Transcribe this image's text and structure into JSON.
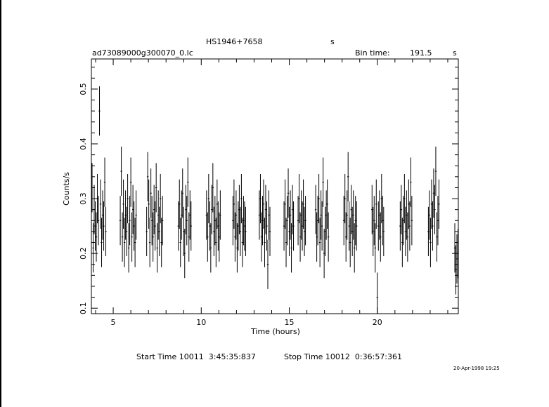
{
  "header": {
    "object_name": "HS1946+7658",
    "object_suffix": "s",
    "file_name": "ad73089000g300070_0.lc",
    "bin_time_label": "Bin time:",
    "bin_time_value": "191.5",
    "bin_time_unit": "s"
  },
  "footer": {
    "start_label": "Start Time 10011  3:45:35:837",
    "stop_label": "Stop Time 10012  0:36:57:361",
    "timestamp": "20-Apr-1998 19:25"
  },
  "chart_data": {
    "type": "scatter",
    "title": "HS1946+7658",
    "xlabel": "Time (hours)",
    "ylabel": "Counts/s",
    "xlim": [
      3.76,
      24.6
    ],
    "ylim": [
      0.09,
      0.555
    ],
    "xticks": [
      5,
      10,
      15,
      20
    ],
    "yticks": [
      0.1,
      0.2,
      0.3,
      0.4,
      0.5
    ],
    "ytick_labels": [
      "0.1",
      "0.2",
      "0.3",
      "0.4",
      "0.5"
    ],
    "grid": false,
    "legend": "none",
    "series": [
      {
        "style": "points with vertical error bars",
        "x": [
          3.8,
          3.86,
          3.92,
          3.98,
          4.04,
          4.1,
          4.16,
          4.22,
          4.28,
          4.34,
          4.4,
          4.46,
          4.52,
          4.58,
          5.4,
          5.46,
          5.52,
          5.58,
          5.64,
          5.7,
          5.76,
          5.82,
          5.88,
          5.94,
          6.0,
          6.06,
          6.12,
          6.18,
          6.24,
          6.3,
          6.9,
          6.96,
          7.02,
          7.08,
          7.14,
          7.2,
          7.26,
          7.32,
          7.38,
          7.44,
          7.5,
          7.56,
          7.62,
          7.68,
          7.74,
          7.8,
          8.7,
          8.76,
          8.82,
          8.88,
          8.94,
          9.0,
          9.06,
          9.12,
          9.18,
          9.24,
          9.3,
          9.36,
          9.42,
          10.3,
          10.36,
          10.42,
          10.48,
          10.54,
          10.6,
          10.66,
          10.72,
          10.78,
          10.84,
          10.9,
          10.96,
          11.02,
          11.08,
          11.8,
          11.86,
          11.92,
          11.98,
          12.04,
          12.1,
          12.16,
          12.22,
          12.28,
          12.34,
          12.4,
          12.46,
          12.52,
          13.3,
          13.36,
          13.42,
          13.48,
          13.54,
          13.6,
          13.66,
          13.72,
          13.78,
          13.84,
          13.9,
          14.7,
          14.76,
          14.82,
          14.88,
          14.94,
          15.0,
          15.06,
          15.12,
          15.18,
          15.24,
          15.5,
          15.56,
          15.62,
          15.68,
          15.74,
          15.8,
          15.86,
          15.92,
          16.5,
          16.56,
          16.62,
          16.68,
          16.74,
          16.8,
          16.86,
          16.92,
          16.98,
          17.04,
          17.1,
          17.16,
          17.22,
          18.1,
          18.16,
          18.22,
          18.28,
          18.34,
          18.4,
          18.46,
          18.52,
          18.58,
          18.64,
          18.7,
          18.76,
          18.82,
          19.7,
          19.76,
          19.82,
          19.88,
          19.94,
          20.0,
          20.06,
          20.12,
          20.18,
          20.24,
          20.3,
          20.36,
          21.3,
          21.36,
          21.42,
          21.48,
          21.54,
          21.6,
          21.66,
          21.72,
          21.78,
          21.84,
          21.9,
          21.96,
          22.9,
          22.96,
          23.02,
          23.08,
          23.14,
          23.2,
          23.26,
          23.32,
          23.38,
          23.44,
          23.5,
          24.4,
          24.46,
          24.52,
          24.58
        ],
        "y": [
          0.32,
          0.21,
          0.28,
          0.25,
          0.23,
          0.3,
          0.26,
          0.46,
          0.29,
          0.22,
          0.27,
          0.25,
          0.33,
          0.24,
          0.26,
          0.35,
          0.23,
          0.29,
          0.22,
          0.27,
          0.24,
          0.3,
          0.21,
          0.26,
          0.33,
          0.23,
          0.28,
          0.25,
          0.22,
          0.27,
          0.24,
          0.34,
          0.29,
          0.22,
          0.31,
          0.26,
          0.23,
          0.28,
          0.25,
          0.32,
          0.21,
          0.27,
          0.24,
          0.3,
          0.22,
          0.26,
          0.25,
          0.29,
          0.22,
          0.27,
          0.31,
          0.24,
          0.2,
          0.28,
          0.26,
          0.33,
          0.23,
          0.27,
          0.25,
          0.27,
          0.23,
          0.3,
          0.25,
          0.21,
          0.28,
          0.32,
          0.24,
          0.26,
          0.22,
          0.29,
          0.25,
          0.23,
          0.27,
          0.26,
          0.29,
          0.23,
          0.27,
          0.21,
          0.25,
          0.28,
          0.24,
          0.3,
          0.22,
          0.26,
          0.25,
          0.24,
          0.27,
          0.3,
          0.23,
          0.26,
          0.29,
          0.22,
          0.28,
          0.25,
          0.18,
          0.27,
          0.24,
          0.25,
          0.29,
          0.22,
          0.26,
          0.31,
          0.24,
          0.27,
          0.21,
          0.28,
          0.25,
          0.26,
          0.3,
          0.23,
          0.27,
          0.25,
          0.29,
          0.24,
          0.26,
          0.28,
          0.23,
          0.26,
          0.3,
          0.22,
          0.27,
          0.25,
          0.33,
          0.2,
          0.24,
          0.27,
          0.29,
          0.23,
          0.26,
          0.3,
          0.23,
          0.27,
          0.34,
          0.25,
          0.22,
          0.28,
          0.24,
          0.27,
          0.21,
          0.26,
          0.25,
          0.28,
          0.24,
          0.26,
          0.21,
          0.29,
          0.12,
          0.25,
          0.27,
          0.23,
          0.3,
          0.26,
          0.24,
          0.25,
          0.28,
          0.22,
          0.26,
          0.3,
          0.24,
          0.27,
          0.23,
          0.29,
          0.25,
          0.33,
          0.26,
          0.24,
          0.27,
          0.22,
          0.29,
          0.25,
          0.31,
          0.28,
          0.35,
          0.23,
          0.26,
          0.29,
          0.21,
          0.17,
          0.19,
          0.2
        ],
        "yerr": 0.045
      }
    ]
  }
}
